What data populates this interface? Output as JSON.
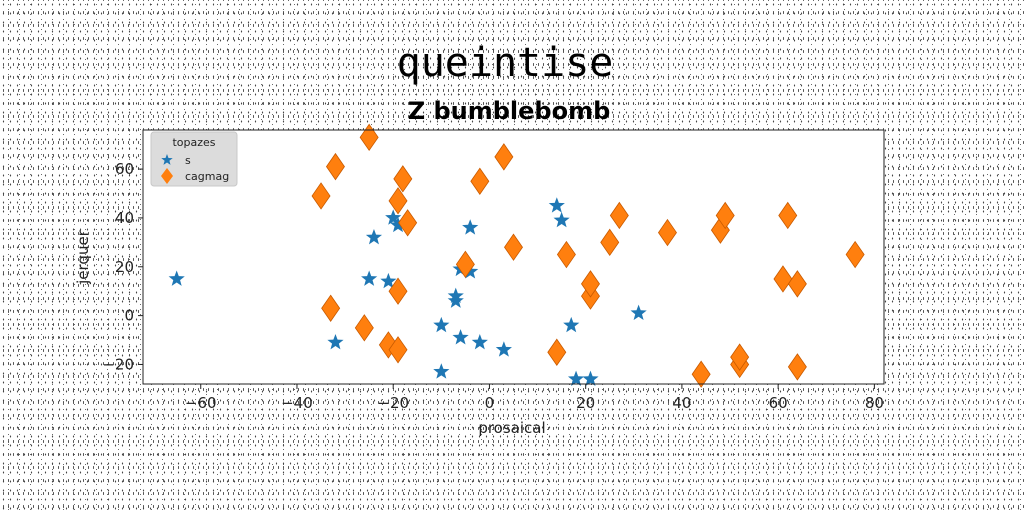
{
  "chart_data": {
    "type": "scatter",
    "title": "queintise",
    "subtitle": "Z bumblebomb",
    "xlabel": "prosaical",
    "ylabel": "jerquer",
    "xlim": [
      -72,
      82
    ],
    "ylim": [
      -28,
      76
    ],
    "xticks": [
      -60,
      -40,
      -20,
      0,
      20,
      40,
      60,
      80
    ],
    "yticks": [
      -20,
      0,
      20,
      40,
      60
    ],
    "grid": false,
    "legend": {
      "title": "topazes",
      "placement": "top-left"
    },
    "colors": {
      "s": "#1f77b4",
      "cagmag": "#ff7f0e"
    },
    "series": [
      {
        "name": "s",
        "marker": "star",
        "points": [
          [
            -65,
            15
          ],
          [
            -32,
            -11
          ],
          [
            -25,
            15
          ],
          [
            -24,
            32
          ],
          [
            -21,
            14
          ],
          [
            -20,
            40
          ],
          [
            -19,
            37
          ],
          [
            -10,
            -23
          ],
          [
            -10,
            -4
          ],
          [
            -7,
            6
          ],
          [
            -7,
            8
          ],
          [
            -6,
            -9
          ],
          [
            -6,
            19
          ],
          [
            -4,
            18
          ],
          [
            -4,
            36
          ],
          [
            -2,
            -11
          ],
          [
            3,
            -14
          ],
          [
            14,
            45
          ],
          [
            15,
            39
          ],
          [
            17,
            -4
          ],
          [
            18,
            -26
          ],
          [
            21,
            -26
          ],
          [
            31,
            1
          ]
        ]
      },
      {
        "name": "cagmag",
        "marker": "diamond",
        "points": [
          [
            -35,
            49
          ],
          [
            -33,
            3
          ],
          [
            -32,
            61
          ],
          [
            -26,
            -5
          ],
          [
            -25,
            73
          ],
          [
            -21,
            -12
          ],
          [
            -19,
            -14
          ],
          [
            -19,
            10
          ],
          [
            -19,
            47
          ],
          [
            -18,
            56
          ],
          [
            -17,
            38
          ],
          [
            -5,
            21
          ],
          [
            -2,
            55
          ],
          [
            3,
            65
          ],
          [
            5,
            28
          ],
          [
            14,
            -15
          ],
          [
            16,
            25
          ],
          [
            21,
            8
          ],
          [
            21,
            13
          ],
          [
            25,
            30
          ],
          [
            27,
            41
          ],
          [
            37,
            34
          ],
          [
            44,
            -24
          ],
          [
            48,
            35
          ],
          [
            49,
            41
          ],
          [
            52,
            -20
          ],
          [
            52,
            -17
          ],
          [
            61,
            15
          ],
          [
            62,
            41
          ],
          [
            64,
            13
          ],
          [
            64,
            -21
          ],
          [
            76,
            25
          ]
        ]
      }
    ]
  }
}
